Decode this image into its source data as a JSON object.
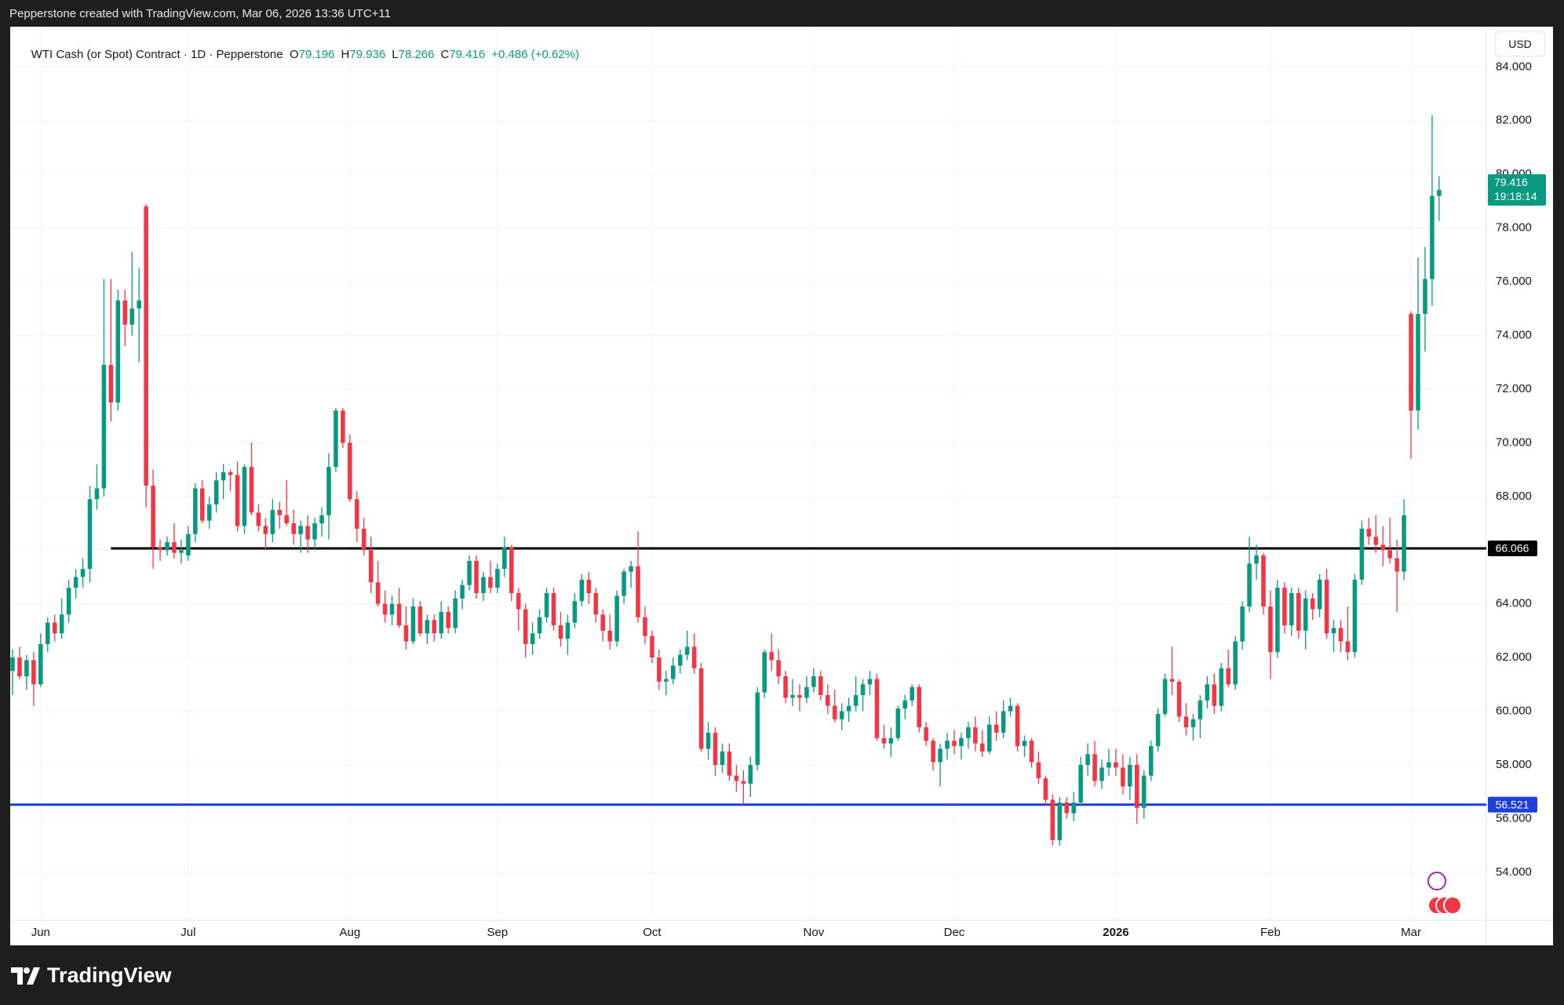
{
  "topbar": {
    "text": "Pepperstone created with TradingView.com, Mar 06, 2026 13:36 UTC+11"
  },
  "footer": {
    "brand": "TradingView"
  },
  "chart_data": {
    "type": "candlestick",
    "title": "WTI Cash (or Spot) Contract · 1D · Pepperstone",
    "ohlc_labels": [
      "O",
      "H",
      "L",
      "C"
    ],
    "change": "+0.486 (+0.62%)",
    "currency": "USD",
    "countdown": "19:18:14",
    "up_color": "#089981",
    "down_color": "#f23645",
    "grid": true,
    "ylim": [
      52.3,
      85.5
    ],
    "yticks": [
      {
        "value": 54,
        "label": "54.000"
      },
      {
        "value": 56,
        "label": "56.000"
      },
      {
        "value": 58,
        "label": "58.000"
      },
      {
        "value": 60,
        "label": "60.000"
      },
      {
        "value": 62,
        "label": "62.000"
      },
      {
        "value": 64,
        "label": "64.000"
      },
      {
        "value": 66,
        "label": "66.000"
      },
      {
        "value": 68,
        "label": "68.000"
      },
      {
        "value": 70,
        "label": "70.000"
      },
      {
        "value": 72,
        "label": "72.000"
      },
      {
        "value": 74,
        "label": "74.000"
      },
      {
        "value": 76,
        "label": "76.000"
      },
      {
        "value": 78,
        "label": "78.000"
      },
      {
        "value": 80,
        "label": "80.000"
      },
      {
        "value": 82,
        "label": "82.000"
      },
      {
        "value": 84,
        "label": "84.000"
      }
    ],
    "hlines": [
      {
        "value": 66.066,
        "color": "#000000"
      },
      {
        "value": 56.521,
        "color": "#1e3fd9"
      }
    ],
    "categories": [
      null,
      null,
      null,
      null,
      "Jun",
      null,
      null,
      null,
      null,
      null,
      null,
      null,
      null,
      null,
      null,
      null,
      null,
      null,
      null,
      null,
      null,
      null,
      null,
      null,
      null,
      "Jul",
      null,
      null,
      null,
      null,
      null,
      null,
      null,
      null,
      null,
      null,
      null,
      null,
      null,
      null,
      null,
      null,
      null,
      null,
      null,
      null,
      null,
      null,
      "Aug",
      null,
      null,
      null,
      null,
      null,
      null,
      null,
      null,
      null,
      null,
      null,
      null,
      null,
      null,
      null,
      null,
      null,
      null,
      null,
      null,
      "Sep",
      null,
      null,
      null,
      null,
      null,
      null,
      null,
      null,
      null,
      null,
      null,
      null,
      null,
      null,
      null,
      null,
      null,
      null,
      null,
      null,
      null,
      "Oct",
      null,
      null,
      null,
      null,
      null,
      null,
      null,
      null,
      null,
      null,
      null,
      null,
      null,
      null,
      null,
      null,
      null,
      null,
      null,
      null,
      null,
      null,
      "Nov",
      null,
      null,
      null,
      null,
      null,
      null,
      null,
      null,
      null,
      null,
      null,
      null,
      null,
      null,
      null,
      null,
      null,
      null,
      null,
      "Dec",
      null,
      null,
      null,
      null,
      null,
      null,
      null,
      null,
      null,
      null,
      null,
      null,
      null,
      null,
      null,
      null,
      null,
      null,
      null,
      null,
      null,
      null,
      "2026",
      null,
      null,
      null,
      null,
      null,
      null,
      null,
      null,
      null,
      null,
      null,
      null,
      null,
      null,
      null,
      null,
      null,
      null,
      null,
      null,
      null,
      "Feb",
      null,
      null,
      null,
      null,
      null,
      null,
      null,
      null,
      null,
      null,
      null,
      null,
      null,
      null,
      null,
      null,
      null,
      null,
      null,
      "Mar",
      null,
      null,
      null,
      null
    ],
    "ohlc": [
      [
        61.5,
        62.3,
        60.6,
        62.0
      ],
      [
        62.0,
        62.4,
        61.2,
        61.3
      ],
      [
        61.3,
        62.1,
        60.8,
        61.9
      ],
      [
        61.9,
        62.2,
        60.2,
        61.0
      ],
      [
        61.0,
        62.9,
        60.9,
        62.5
      ],
      [
        62.5,
        63.5,
        62.2,
        63.3
      ],
      [
        63.3,
        63.6,
        62.6,
        62.9
      ],
      [
        62.9,
        64.2,
        62.7,
        63.6
      ],
      [
        63.6,
        64.9,
        63.3,
        64.6
      ],
      [
        64.6,
        65.3,
        64.2,
        65.0
      ],
      [
        65.0,
        65.7,
        64.6,
        65.3
      ],
      [
        65.3,
        68.4,
        64.8,
        67.9
      ],
      [
        67.9,
        69.2,
        67.5,
        68.3
      ],
      [
        68.3,
        76.1,
        68.0,
        72.9
      ],
      [
        72.9,
        76.1,
        70.8,
        71.5
      ],
      [
        71.5,
        75.7,
        71.2,
        75.3
      ],
      [
        75.3,
        75.7,
        73.6,
        74.4
      ],
      [
        74.4,
        77.1,
        74.0,
        75.0
      ],
      [
        75.0,
        76.5,
        73.0,
        75.3
      ],
      [
        78.8,
        78.9,
        67.6,
        68.4
      ],
      [
        68.4,
        69.0,
        65.3,
        66.1
      ],
      [
        66.1,
        66.4,
        65.6,
        66.0
      ],
      [
        66.0,
        66.5,
        65.8,
        66.3
      ],
      [
        66.3,
        67.0,
        65.7,
        65.9
      ],
      [
        65.9,
        66.4,
        65.5,
        66.0
      ],
      [
        65.8,
        66.9,
        65.6,
        66.6
      ],
      [
        66.6,
        68.5,
        66.3,
        68.3
      ],
      [
        68.3,
        68.6,
        67.0,
        67.1
      ],
      [
        67.1,
        68.0,
        66.8,
        67.7
      ],
      [
        67.7,
        68.9,
        67.4,
        68.6
      ],
      [
        68.6,
        69.2,
        67.9,
        68.9
      ],
      [
        68.9,
        69.0,
        68.2,
        68.8
      ],
      [
        68.8,
        69.3,
        66.7,
        66.9
      ],
      [
        66.9,
        69.2,
        66.6,
        69.1
      ],
      [
        69.1,
        70.0,
        67.3,
        67.4
      ],
      [
        67.4,
        67.7,
        66.7,
        66.9
      ],
      [
        66.9,
        67.2,
        66.0,
        66.6
      ],
      [
        66.6,
        67.9,
        66.3,
        67.5
      ],
      [
        67.5,
        67.8,
        66.8,
        67.3
      ],
      [
        67.3,
        68.6,
        66.9,
        67.0
      ],
      [
        67.0,
        67.5,
        66.2,
        66.6
      ],
      [
        66.6,
        67.1,
        65.9,
        66.9
      ],
      [
        66.9,
        67.3,
        65.9,
        66.4
      ],
      [
        66.4,
        67.2,
        66.0,
        67.0
      ],
      [
        67.0,
        67.6,
        66.5,
        67.3
      ],
      [
        67.3,
        69.6,
        66.4,
        69.1
      ],
      [
        69.1,
        71.3,
        68.9,
        71.2
      ],
      [
        71.2,
        71.3,
        69.8,
        70.0
      ],
      [
        70.0,
        70.3,
        67.8,
        67.9
      ],
      [
        67.9,
        68.2,
        66.3,
        66.8
      ],
      [
        66.8,
        67.2,
        65.8,
        66.0
      ],
      [
        66.0,
        66.5,
        64.4,
        64.8
      ],
      [
        64.8,
        65.6,
        63.9,
        64.0
      ],
      [
        64.0,
        64.5,
        63.3,
        63.6
      ],
      [
        63.6,
        64.3,
        63.2,
        64.0
      ],
      [
        64.0,
        64.6,
        63.1,
        63.2
      ],
      [
        63.2,
        63.9,
        62.3,
        62.6
      ],
      [
        62.6,
        64.2,
        62.5,
        63.9
      ],
      [
        63.9,
        64.1,
        62.8,
        62.9
      ],
      [
        62.9,
        63.6,
        62.5,
        63.4
      ],
      [
        63.4,
        63.6,
        62.6,
        62.9
      ],
      [
        62.9,
        64.1,
        62.7,
        63.7
      ],
      [
        63.7,
        63.9,
        62.9,
        63.1
      ],
      [
        63.1,
        64.5,
        62.9,
        64.2
      ],
      [
        64.2,
        64.9,
        63.8,
        64.7
      ],
      [
        64.7,
        65.8,
        64.5,
        65.6
      ],
      [
        65.6,
        65.8,
        64.2,
        64.4
      ],
      [
        64.4,
        65.2,
        64.1,
        65.0
      ],
      [
        65.0,
        65.6,
        64.4,
        64.6
      ],
      [
        64.6,
        65.5,
        64.4,
        65.3
      ],
      [
        65.3,
        66.5,
        65.0,
        66.1
      ],
      [
        66.1,
        66.2,
        64.1,
        64.4
      ],
      [
        64.4,
        64.6,
        63.0,
        63.8
      ],
      [
        63.8,
        64.0,
        62.0,
        62.5
      ],
      [
        62.5,
        63.3,
        62.1,
        62.9
      ],
      [
        62.9,
        63.8,
        62.7,
        63.5
      ],
      [
        63.5,
        64.6,
        63.3,
        64.4
      ],
      [
        64.4,
        64.6,
        63.0,
        63.2
      ],
      [
        63.2,
        63.7,
        62.4,
        62.7
      ],
      [
        62.7,
        63.6,
        62.1,
        63.3
      ],
      [
        63.3,
        64.4,
        63.1,
        64.1
      ],
      [
        64.1,
        65.1,
        63.9,
        64.9
      ],
      [
        64.9,
        65.2,
        64.0,
        64.4
      ],
      [
        64.4,
        64.6,
        63.3,
        63.6
      ],
      [
        63.6,
        63.8,
        62.6,
        63.0
      ],
      [
        63.0,
        63.6,
        62.3,
        62.6
      ],
      [
        62.6,
        64.5,
        62.4,
        64.3
      ],
      [
        64.3,
        65.3,
        64.0,
        65.2
      ],
      [
        65.2,
        65.6,
        64.6,
        65.4
      ],
      [
        65.4,
        66.7,
        63.3,
        63.5
      ],
      [
        63.5,
        63.9,
        62.5,
        62.8
      ],
      [
        62.8,
        63.0,
        61.8,
        62.0
      ],
      [
        62.0,
        62.3,
        60.8,
        61.1
      ],
      [
        61.1,
        61.5,
        60.6,
        61.2
      ],
      [
        61.2,
        62.0,
        61.0,
        61.7
      ],
      [
        61.7,
        62.3,
        61.4,
        62.1
      ],
      [
        62.1,
        63.0,
        61.9,
        62.4
      ],
      [
        62.4,
        62.9,
        61.4,
        61.6
      ],
      [
        61.6,
        61.8,
        58.5,
        58.6
      ],
      [
        58.6,
        59.6,
        58.2,
        59.2
      ],
      [
        59.2,
        59.4,
        57.6,
        58.0
      ],
      [
        58.0,
        58.8,
        57.7,
        58.5
      ],
      [
        58.5,
        58.8,
        57.4,
        57.6
      ],
      [
        57.6,
        58.0,
        57.0,
        57.4
      ],
      [
        57.4,
        57.8,
        56.5,
        57.3
      ],
      [
        57.3,
        58.3,
        56.8,
        58.0
      ],
      [
        58.0,
        60.9,
        57.8,
        60.7
      ],
      [
        60.7,
        62.3,
        60.5,
        62.2
      ],
      [
        62.2,
        62.9,
        61.5,
        61.9
      ],
      [
        61.9,
        62.3,
        61.0,
        61.3
      ],
      [
        61.3,
        61.5,
        60.3,
        60.5
      ],
      [
        60.5,
        61.2,
        60.2,
        60.6
      ],
      [
        60.6,
        61.0,
        60.0,
        60.5
      ],
      [
        60.5,
        61.3,
        60.3,
        60.9
      ],
      [
        60.9,
        61.6,
        60.7,
        61.3
      ],
      [
        61.3,
        61.5,
        60.4,
        60.6
      ],
      [
        60.6,
        61.0,
        59.9,
        60.2
      ],
      [
        60.2,
        60.8,
        59.6,
        59.7
      ],
      [
        59.7,
        60.3,
        59.3,
        60.0
      ],
      [
        60.0,
        60.5,
        59.6,
        60.2
      ],
      [
        60.2,
        61.3,
        60.0,
        60.6
      ],
      [
        60.6,
        61.2,
        60.0,
        61.0
      ],
      [
        61.0,
        61.5,
        60.6,
        61.2
      ],
      [
        61.2,
        61.4,
        58.9,
        59.0
      ],
      [
        59.0,
        59.5,
        58.6,
        58.8
      ],
      [
        58.8,
        59.4,
        58.3,
        59.0
      ],
      [
        59.0,
        60.2,
        58.9,
        60.1
      ],
      [
        60.1,
        60.6,
        59.7,
        60.4
      ],
      [
        60.4,
        61.0,
        60.2,
        60.9
      ],
      [
        60.9,
        61.0,
        59.2,
        59.4
      ],
      [
        59.4,
        59.6,
        58.7,
        58.9
      ],
      [
        58.9,
        59.0,
        57.8,
        58.1
      ],
      [
        58.1,
        58.8,
        57.2,
        58.6
      ],
      [
        58.6,
        59.2,
        58.2,
        58.9
      ],
      [
        58.9,
        59.3,
        58.4,
        58.7
      ],
      [
        58.7,
        59.2,
        58.2,
        59.0
      ],
      [
        59.0,
        59.6,
        58.6,
        59.4
      ],
      [
        59.4,
        59.8,
        58.5,
        58.8
      ],
      [
        58.8,
        59.3,
        58.3,
        58.5
      ],
      [
        58.5,
        59.8,
        58.4,
        59.5
      ],
      [
        59.5,
        60.0,
        58.9,
        59.2
      ],
      [
        59.2,
        60.4,
        59.0,
        60.0
      ],
      [
        60.0,
        60.5,
        59.8,
        60.2
      ],
      [
        60.2,
        60.3,
        58.5,
        58.7
      ],
      [
        58.7,
        59.1,
        58.3,
        58.9
      ],
      [
        58.9,
        59.0,
        57.9,
        58.1
      ],
      [
        58.1,
        58.5,
        57.3,
        57.5
      ],
      [
        57.5,
        57.6,
        56.5,
        56.7
      ],
      [
        56.7,
        56.9,
        55.0,
        55.2
      ],
      [
        55.2,
        56.8,
        55.0,
        56.6
      ],
      [
        56.6,
        56.8,
        56.0,
        56.2
      ],
      [
        56.2,
        57.0,
        55.9,
        56.6
      ],
      [
        56.6,
        58.3,
        56.5,
        58.0
      ],
      [
        58.0,
        58.8,
        57.6,
        58.4
      ],
      [
        58.4,
        58.9,
        57.2,
        57.4
      ],
      [
        57.4,
        58.2,
        57.1,
        57.9
      ],
      [
        57.9,
        58.6,
        57.6,
        58.1
      ],
      [
        58.1,
        58.6,
        57.6,
        57.9
      ],
      [
        57.9,
        58.4,
        56.9,
        57.2
      ],
      [
        57.2,
        58.3,
        56.7,
        58.0
      ],
      [
        58.0,
        58.4,
        55.8,
        56.4
      ],
      [
        56.4,
        57.8,
        56.0,
        57.6
      ],
      [
        57.6,
        58.9,
        57.4,
        58.7
      ],
      [
        58.7,
        60.1,
        58.5,
        59.9
      ],
      [
        59.9,
        61.4,
        59.8,
        61.2
      ],
      [
        61.2,
        62.4,
        60.6,
        61.1
      ],
      [
        61.1,
        61.2,
        59.6,
        59.8
      ],
      [
        59.8,
        60.3,
        59.1,
        59.4
      ],
      [
        59.4,
        59.9,
        58.9,
        59.7
      ],
      [
        59.7,
        60.6,
        59.0,
        60.4
      ],
      [
        60.4,
        61.3,
        60.1,
        61.0
      ],
      [
        61.0,
        61.4,
        59.9,
        60.2
      ],
      [
        60.2,
        61.8,
        60.0,
        61.6
      ],
      [
        61.6,
        62.3,
        60.9,
        61.0
      ],
      [
        61.0,
        62.8,
        60.8,
        62.6
      ],
      [
        62.6,
        64.1,
        62.3,
        63.9
      ],
      [
        63.9,
        66.5,
        63.7,
        65.5
      ],
      [
        65.5,
        66.2,
        64.9,
        65.8
      ],
      [
        65.8,
        65.9,
        63.6,
        63.9
      ],
      [
        63.9,
        64.5,
        61.2,
        62.2
      ],
      [
        62.2,
        64.9,
        62.0,
        64.6
      ],
      [
        64.6,
        64.8,
        62.9,
        63.2
      ],
      [
        63.2,
        64.6,
        62.8,
        64.4
      ],
      [
        64.4,
        64.6,
        62.7,
        63.0
      ],
      [
        63.0,
        64.5,
        62.3,
        64.2
      ],
      [
        64.2,
        64.4,
        63.4,
        63.8
      ],
      [
        63.8,
        65.1,
        63.5,
        64.9
      ],
      [
        64.9,
        65.3,
        62.7,
        62.9
      ],
      [
        62.9,
        63.4,
        62.2,
        63.1
      ],
      [
        63.1,
        63.4,
        62.2,
        62.6
      ],
      [
        62.6,
        63.9,
        61.9,
        62.2
      ],
      [
        62.2,
        65.1,
        62.0,
        64.9
      ],
      [
        64.9,
        67.1,
        64.7,
        66.8
      ],
      [
        66.8,
        67.2,
        66.2,
        66.5
      ],
      [
        66.5,
        67.3,
        65.9,
        66.2
      ],
      [
        66.2,
        66.9,
        65.4,
        66.0
      ],
      [
        66.0,
        67.2,
        65.5,
        65.7
      ],
      [
        65.7,
        66.4,
        63.7,
        65.2
      ],
      [
        65.2,
        67.9,
        64.9,
        67.3
      ],
      [
        74.8,
        74.9,
        69.4,
        71.2
      ],
      [
        71.2,
        76.9,
        70.5,
        74.8
      ],
      [
        74.8,
        77.3,
        73.4,
        76.1
      ],
      [
        76.1,
        82.2,
        75.1,
        79.2
      ],
      [
        79.196,
        79.936,
        78.266,
        79.416
      ]
    ]
  }
}
